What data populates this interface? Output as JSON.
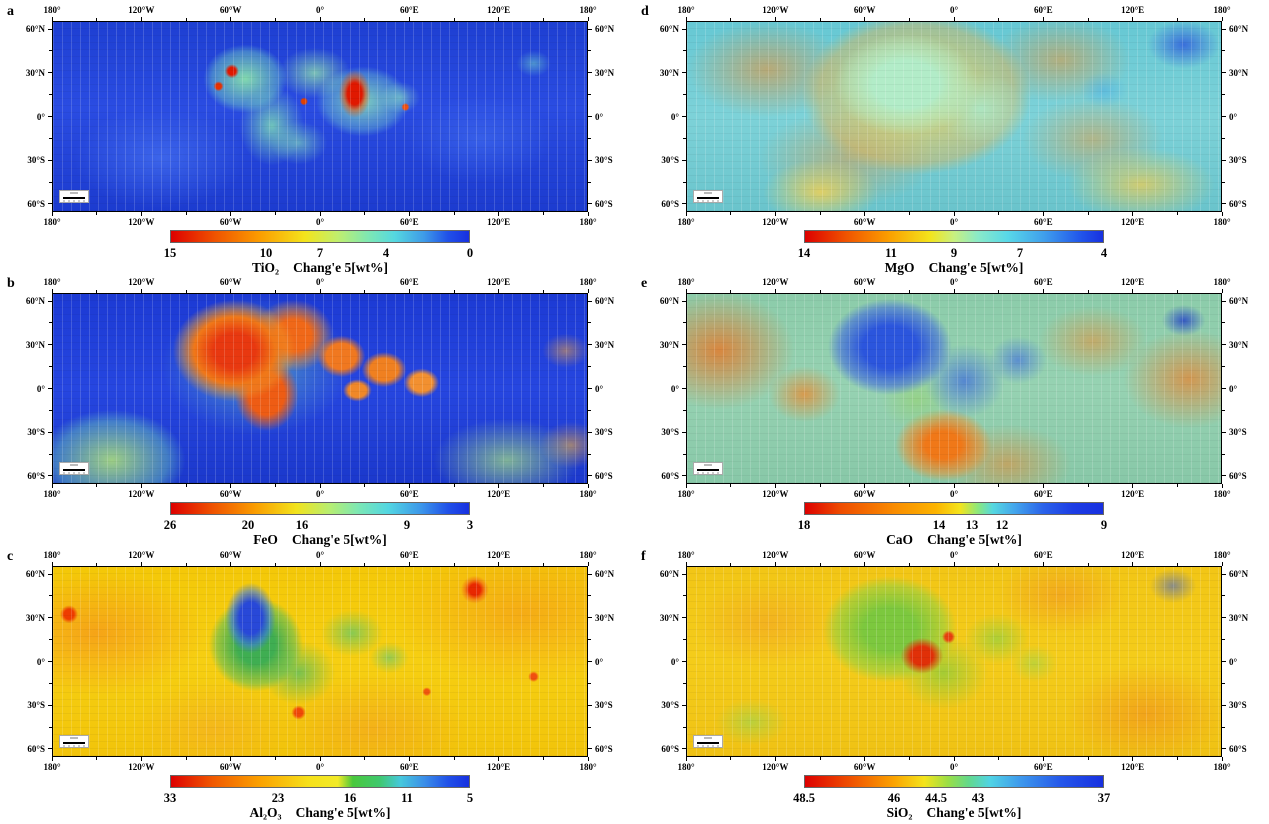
{
  "axes": {
    "lon_labels": [
      "180°",
      "120°W",
      "60°W",
      "0°",
      "60°E",
      "120°E",
      "180°"
    ],
    "lon_positions": [
      0,
      16.67,
      33.33,
      50,
      66.67,
      83.33,
      100
    ],
    "lon_minor_positions": [
      8.33,
      25,
      41.67,
      58.33,
      75,
      91.67
    ],
    "lat_labels": [
      "60°N",
      "30°N",
      "0°",
      "30°S",
      "60°S"
    ],
    "lat_positions": [
      4.2,
      27.1,
      50,
      72.9,
      95.8
    ],
    "lat_minor_positions": [
      15.6,
      38.5,
      61.5,
      84.4
    ]
  },
  "colors": {
    "map_border": "#000000",
    "text": "#000000"
  },
  "panels": [
    {
      "id": "a",
      "label": "a",
      "oxide": "TiO₂",
      "source": "Chang'e 5[wt%]",
      "colorbar": {
        "ticks": [
          {
            "v": "15",
            "pos": 0
          },
          {
            "v": "10",
            "pos": 32
          },
          {
            "v": "7",
            "pos": 50
          },
          {
            "v": "4",
            "pos": 72
          },
          {
            "v": "0",
            "pos": 100
          }
        ],
        "stops": [
          {
            "c": "#dd0000",
            "p": 0
          },
          {
            "c": "#f05400",
            "p": 15
          },
          {
            "c": "#fb9e00",
            "p": 30
          },
          {
            "c": "#f3e41c",
            "p": 45
          },
          {
            "c": "#c0ef6e",
            "p": 56
          },
          {
            "c": "#7fe8b2",
            "p": 66
          },
          {
            "c": "#55d8e0",
            "p": 75
          },
          {
            "c": "#3e9ae8",
            "p": 85
          },
          {
            "c": "#2050e8",
            "p": 93
          },
          {
            "c": "#1730e0",
            "p": 100
          }
        ]
      }
    },
    {
      "id": "b",
      "label": "b",
      "oxide": "FeO",
      "source": "Chang'e 5[wt%]",
      "colorbar": {
        "ticks": [
          {
            "v": "26",
            "pos": 0
          },
          {
            "v": "20",
            "pos": 26
          },
          {
            "v": "16",
            "pos": 44
          },
          {
            "v": "9",
            "pos": 79
          },
          {
            "v": "3",
            "pos": 100
          }
        ],
        "stops": [
          {
            "c": "#dd0000",
            "p": 0
          },
          {
            "c": "#ef5200",
            "p": 14
          },
          {
            "c": "#fa9c00",
            "p": 28
          },
          {
            "c": "#f2e31c",
            "p": 42
          },
          {
            "c": "#b8ee70",
            "p": 53
          },
          {
            "c": "#7be7b5",
            "p": 63
          },
          {
            "c": "#52d6e2",
            "p": 73
          },
          {
            "c": "#3c96ea",
            "p": 84
          },
          {
            "c": "#2050e8",
            "p": 93
          },
          {
            "c": "#1730e0",
            "p": 100
          }
        ]
      }
    },
    {
      "id": "c",
      "label": "c",
      "oxide": "Al₂O₃",
      "source": "Chang'e 5[wt%]",
      "colorbar": {
        "ticks": [
          {
            "v": "33",
            "pos": 0
          },
          {
            "v": "23",
            "pos": 36
          },
          {
            "v": "16",
            "pos": 60
          },
          {
            "v": "11",
            "pos": 79
          },
          {
            "v": "5",
            "pos": 100
          }
        ],
        "stops": [
          {
            "c": "#dd0000",
            "p": 0
          },
          {
            "c": "#f05800",
            "p": 14
          },
          {
            "c": "#fba200",
            "p": 30
          },
          {
            "c": "#f6e01a",
            "p": 46
          },
          {
            "c": "#f2ea28",
            "p": 56
          },
          {
            "c": "#49c83c",
            "p": 61
          },
          {
            "c": "#3fc86e",
            "p": 70
          },
          {
            "c": "#46c8dc",
            "p": 77
          },
          {
            "c": "#3a8ee8",
            "p": 85
          },
          {
            "c": "#2050e8",
            "p": 93
          },
          {
            "c": "#1730e0",
            "p": 100
          }
        ]
      }
    },
    {
      "id": "d",
      "label": "d",
      "oxide": "MgO",
      "source": "Chang'e 5[wt%]",
      "colorbar": {
        "ticks": [
          {
            "v": "14",
            "pos": 0
          },
          {
            "v": "11",
            "pos": 29
          },
          {
            "v": "9",
            "pos": 50
          },
          {
            "v": "7",
            "pos": 72
          },
          {
            "v": "4",
            "pos": 100
          }
        ],
        "stops": [
          {
            "c": "#dd0000",
            "p": 0
          },
          {
            "c": "#f05400",
            "p": 14
          },
          {
            "c": "#fb9e00",
            "p": 28
          },
          {
            "c": "#f3e41c",
            "p": 42
          },
          {
            "c": "#c8f080",
            "p": 50
          },
          {
            "c": "#8aeac8",
            "p": 58
          },
          {
            "c": "#58d8e8",
            "p": 68
          },
          {
            "c": "#40a0ec",
            "p": 80
          },
          {
            "c": "#2258ea",
            "p": 92
          },
          {
            "c": "#1730e0",
            "p": 100
          }
        ]
      }
    },
    {
      "id": "e",
      "label": "e",
      "oxide": "CaO",
      "source": "Chang'e 5[wt%]",
      "colorbar": {
        "ticks": [
          {
            "v": "18",
            "pos": 0
          },
          {
            "v": "14",
            "pos": 45
          },
          {
            "v": "13",
            "pos": 56
          },
          {
            "v": "12",
            "pos": 66
          },
          {
            "v": "9",
            "pos": 100
          }
        ],
        "stops": [
          {
            "c": "#dd0000",
            "p": 0
          },
          {
            "c": "#ee4c00",
            "p": 12
          },
          {
            "c": "#f98c00",
            "p": 30
          },
          {
            "c": "#fcb400",
            "p": 44
          },
          {
            "c": "#f4e41c",
            "p": 52
          },
          {
            "c": "#8ce87c",
            "p": 58
          },
          {
            "c": "#55d8e0",
            "p": 63
          },
          {
            "c": "#44a8ec",
            "p": 70
          },
          {
            "c": "#2a62ea",
            "p": 80
          },
          {
            "c": "#1c3ce4",
            "p": 90
          },
          {
            "c": "#1730e0",
            "p": 100
          }
        ]
      }
    },
    {
      "id": "f",
      "label": "f",
      "oxide": "SiO₂",
      "source": "Chang'e 5[wt%]",
      "colorbar": {
        "ticks": [
          {
            "v": "48.5",
            "pos": 0
          },
          {
            "v": "46",
            "pos": 30
          },
          {
            "v": "44.5",
            "pos": 44
          },
          {
            "v": "43",
            "pos": 58
          },
          {
            "v": "37",
            "pos": 100
          }
        ],
        "stops": [
          {
            "c": "#dd0000",
            "p": 0
          },
          {
            "c": "#f05400",
            "p": 16
          },
          {
            "c": "#fba400",
            "p": 30
          },
          {
            "c": "#f4e41c",
            "p": 40
          },
          {
            "c": "#9ade46",
            "p": 48
          },
          {
            "c": "#62d88c",
            "p": 55
          },
          {
            "c": "#50d4e4",
            "p": 62
          },
          {
            "c": "#3e9aec",
            "p": 72
          },
          {
            "c": "#2456ea",
            "p": 86
          },
          {
            "c": "#1730e0",
            "p": 100
          }
        ]
      }
    }
  ],
  "chart_data": [
    {
      "type": "heatmap",
      "title": "TiO₂ Chang'e 5[wt%]",
      "panel": "a",
      "colorbar_ticks": [
        15,
        10,
        7,
        4,
        0
      ],
      "range": [
        0,
        15
      ],
      "x_ticks": [
        "180°",
        "120°W",
        "60°W",
        "0°",
        "60°E",
        "120°E",
        "180°"
      ],
      "y_ticks": [
        "60°N",
        "30°N",
        "0°",
        "30°S",
        "60°S"
      ]
    },
    {
      "type": "heatmap",
      "title": "FeO Chang'e 5[wt%]",
      "panel": "b",
      "colorbar_ticks": [
        26,
        20,
        16,
        9,
        3
      ],
      "range": [
        3,
        26
      ],
      "x_ticks": [
        "180°",
        "120°W",
        "60°W",
        "0°",
        "60°E",
        "120°E",
        "180°"
      ],
      "y_ticks": [
        "60°N",
        "30°N",
        "0°",
        "30°S",
        "60°S"
      ]
    },
    {
      "type": "heatmap",
      "title": "Al₂O₃ Chang'e 5[wt%]",
      "panel": "c",
      "colorbar_ticks": [
        33,
        23,
        16,
        11,
        5
      ],
      "range": [
        5,
        33
      ],
      "x_ticks": [
        "180°",
        "120°W",
        "60°W",
        "0°",
        "60°E",
        "120°E",
        "180°"
      ],
      "y_ticks": [
        "60°N",
        "30°N",
        "0°",
        "30°S",
        "60°S"
      ]
    },
    {
      "type": "heatmap",
      "title": "MgO Chang'e 5[wt%]",
      "panel": "d",
      "colorbar_ticks": [
        14,
        11,
        9,
        7,
        4
      ],
      "range": [
        4,
        14
      ],
      "x_ticks": [
        "180°",
        "120°W",
        "60°W",
        "0°",
        "60°E",
        "120°E",
        "180°"
      ],
      "y_ticks": [
        "60°N",
        "30°N",
        "0°",
        "30°S",
        "60°S"
      ]
    },
    {
      "type": "heatmap",
      "title": "CaO Chang'e 5[wt%]",
      "panel": "e",
      "colorbar_ticks": [
        18,
        14,
        13,
        12,
        9
      ],
      "range": [
        9,
        18
      ],
      "x_ticks": [
        "180°",
        "120°W",
        "60°W",
        "0°",
        "60°E",
        "120°E",
        "180°"
      ],
      "y_ticks": [
        "60°N",
        "30°N",
        "0°",
        "30°S",
        "60°S"
      ]
    },
    {
      "type": "heatmap",
      "title": "SiO₂ Chang'e 5[wt%]",
      "panel": "f",
      "colorbar_ticks": [
        48.5,
        46,
        44.5,
        43,
        37
      ],
      "range": [
        37,
        48.5
      ],
      "x_ticks": [
        "180°",
        "120°W",
        "60°W",
        "0°",
        "60°E",
        "120°E",
        "180°"
      ],
      "y_ticks": [
        "60°N",
        "30°N",
        "0°",
        "30°S",
        "60°S"
      ]
    }
  ]
}
